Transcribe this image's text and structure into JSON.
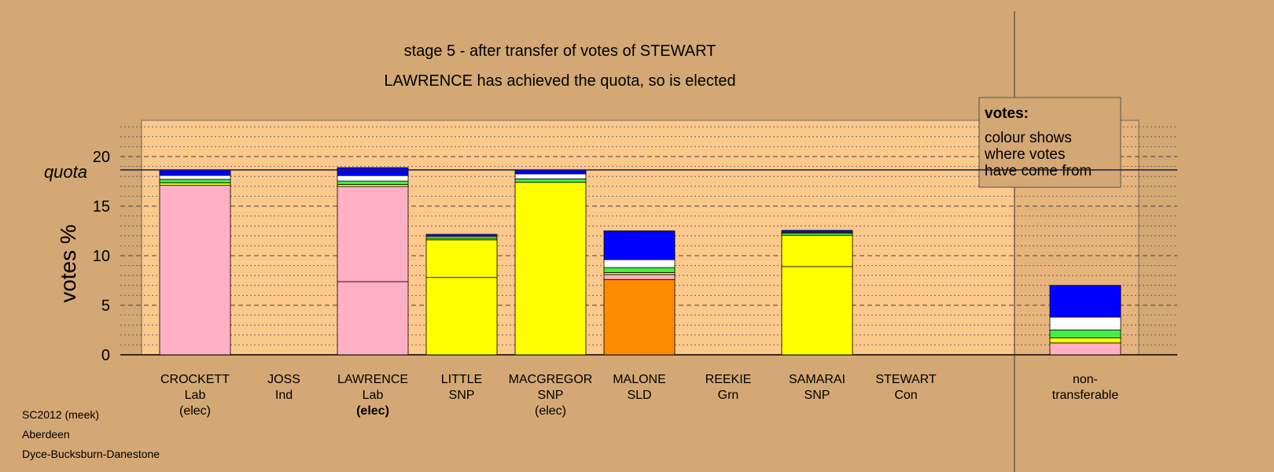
{
  "chart_data": {
    "type": "stacked-bar",
    "title": "stage 5 - after transfer of votes of STEWART",
    "subtitle": "LAWRENCE has achieved the quota, so is elected",
    "y_label": "votes %",
    "quota_label": "quota",
    "quota": 18.65,
    "ylim": [
      0,
      23.65
    ],
    "yticks": [
      0,
      5,
      10,
      15,
      20
    ],
    "minor_yticks": [
      1,
      2,
      3,
      4,
      6,
      7,
      8,
      9,
      11,
      12,
      13,
      14,
      16,
      17,
      18,
      19,
      21,
      22,
      23
    ],
    "grid": true,
    "legend": {
      "title": "votes:",
      "lines": [
        "colour shows",
        "where votes",
        "have come from"
      ]
    },
    "bars": [
      {
        "labels": [
          "CROCKETT",
          "Lab",
          "(elec)"
        ],
        "segments": [
          {
            "color": "#ffb0c4",
            "value": 17.1
          },
          {
            "color": "#ffff00",
            "value": 0.25
          },
          {
            "color": "#44ee44",
            "value": 0.35
          },
          {
            "color": "#ffffff",
            "value": 0.4
          },
          {
            "color": "#0000ff",
            "value": 0.55
          }
        ]
      },
      {
        "labels": [
          "JOSS",
          "Ind"
        ],
        "segments": [
          {
            "color": "#ffffff",
            "value": 0
          }
        ]
      },
      {
        "labels": [
          "LAWRENCE",
          "Lab",
          {
            "text": "(elec)",
            "bold": true
          }
        ],
        "segments": [
          {
            "color": "#ffb0c4",
            "value": 7.38
          },
          {
            "color": "#ffb0c4",
            "value": 9.6
          },
          {
            "color": "#ffff00",
            "value": 0.2
          },
          {
            "color": "#44ee44",
            "value": 0.35
          },
          {
            "color": "#ffffff",
            "value": 0.55
          },
          {
            "color": "#0000ff",
            "value": 0.8
          }
        ]
      },
      {
        "labels": [
          "LITTLE",
          "SNP"
        ],
        "segments": [
          {
            "color": "#ffff00",
            "value": 7.8
          },
          {
            "color": "#ffff00",
            "value": 3.8
          },
          {
            "color": "#44ee44",
            "value": 0.2
          },
          {
            "color": "#ffffff",
            "value": 0.15
          },
          {
            "color": "#0000ff",
            "value": 0.2
          }
        ]
      },
      {
        "labels": [
          "MACGREGOR",
          "SNP",
          "(elec)"
        ],
        "segments": [
          {
            "color": "#ffff00",
            "value": 17.4
          },
          {
            "color": "#44ee44",
            "value": 0.35
          },
          {
            "color": "#ffffff",
            "value": 0.5
          },
          {
            "color": "#0000ff",
            "value": 0.4
          }
        ]
      },
      {
        "labels": [
          "MALONE",
          "SLD"
        ],
        "segments": [
          {
            "color": "#ff8c00",
            "value": 7.6
          },
          {
            "color": "#ffb0c4",
            "value": 0.5
          },
          {
            "color": "#ffff00",
            "value": 0.2
          },
          {
            "color": "#44ee44",
            "value": 0.5
          },
          {
            "color": "#ffffff",
            "value": 0.8
          },
          {
            "color": "#0000ff",
            "value": 2.9
          }
        ]
      },
      {
        "labels": [
          "REEKIE",
          "Grn"
        ],
        "segments": [
          {
            "color": "#44ee44",
            "value": 0
          }
        ]
      },
      {
        "labels": [
          "SAMARAI",
          "SNP"
        ],
        "segments": [
          {
            "color": "#ffff00",
            "value": 8.9
          },
          {
            "color": "#ffff00",
            "value": 3.15
          },
          {
            "color": "#44ee44",
            "value": 0.2
          },
          {
            "color": "#ffffff",
            "value": 0.1
          },
          {
            "color": "#0000ff",
            "value": 0.2
          }
        ]
      },
      {
        "labels": [
          "STEWART",
          "Con"
        ],
        "segments": [
          {
            "color": "#0000ff",
            "value": 0
          }
        ]
      },
      {
        "labels": [
          "non-",
          "transferable"
        ],
        "segments": [
          {
            "color": "#ffb0c4",
            "value": 1.2
          },
          {
            "color": "#ffff00",
            "value": 0.5
          },
          {
            "color": "#44ee44",
            "value": 0.8
          },
          {
            "color": "#ffffff",
            "value": 1.3
          },
          {
            "color": "#0000ff",
            "value": 3.2
          }
        ]
      }
    ],
    "footer": [
      "SC2012 (meek)",
      "Aberdeen",
      "Dyce-Bucksburn-Danestone"
    ]
  }
}
